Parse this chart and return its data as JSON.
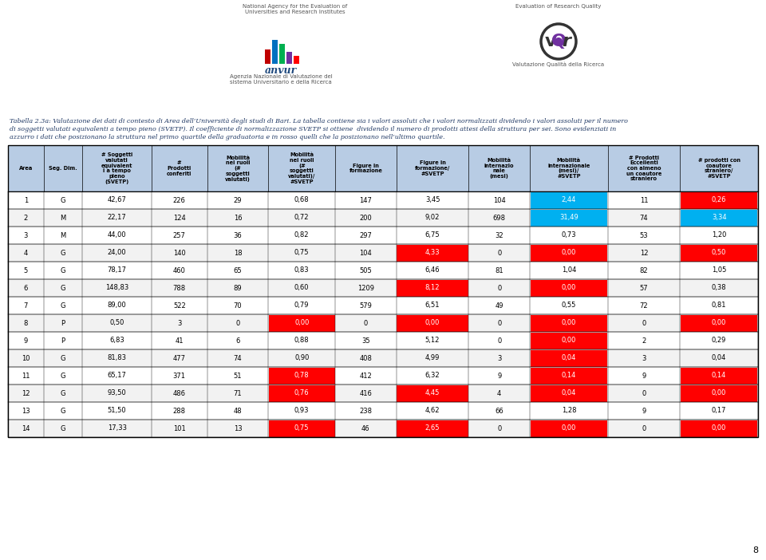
{
  "title_text": "Tabella 2.3a: Valutazione dei dati di contesto di Area dell’Università degli studi di Bari. La tabella contiene sia i valori assoluti che i valori normalizzati dividendo i valori assoluti per il numero di soggetti valutati equivalenti a tempo pieno (SVETP). Il coefficiente di normalizzazione SVETP si ottiene  dividendo il numero di prodotti attesi della struttura per sei. Sono evidenziati in azzurro i dati che posizionano la struttura nel primo quartile della graduatoria e in rosso quelli che la posizionano nell’ultimo quartile.",
  "page_number": "8",
  "header_bg": "#b8cce4",
  "alt_row_bg": "#f2f2f2",
  "white_bg": "#ffffff",
  "blue_highlight": "#00b0f0",
  "red_highlight": "#ff0000",
  "col_headers": [
    "Area",
    "Seg. Dim.",
    "# Soggetti\nvalutati\nequivalent\ni a tempo\npieno\n(SVETP)",
    "#\nProdotti\nconferiti",
    "Mobilità\nnei ruoli\n(#\nsoggetti\nvalutati)",
    "Mobilità\nnei ruoli\n(#\nsoggetti\nvalutati)/\n#SVETP",
    "Figure in\nformazione",
    "Figure in\nformazione/\n#SVETP",
    "Mobilità\ninternazio\nnale\n(mesi)",
    "Mobilità\ninternazionale\n(mesi)/\n#SVETP",
    "# Prodotti\nEccellenti\ncon almeno\nun coautore\nstraniero",
    "# prodotti con\ncoautore\nstraniero/\n#SVETP"
  ],
  "rows": [
    {
      "area": "1",
      "seg": "G",
      "svetp": "42,67",
      "prodotti": "226",
      "mob_ruoli": "29",
      "mob_ruoli_svetp": "0,68",
      "figure": "147",
      "figure_svetp": "3,45",
      "mob_int": "104",
      "mob_int_svetp": "2,44",
      "prod_ecc": "11",
      "prod_coaut": "0,26",
      "colors": [
        "",
        "",
        "",
        "",
        "",
        "",
        "",
        "",
        "",
        "blue",
        "",
        "red"
      ]
    },
    {
      "area": "2",
      "seg": "M",
      "svetp": "22,17",
      "prodotti": "124",
      "mob_ruoli": "16",
      "mob_ruoli_svetp": "0,72",
      "figure": "200",
      "figure_svetp": "9,02",
      "mob_int": "698",
      "mob_int_svetp": "31,49",
      "prod_ecc": "74",
      "prod_coaut": "3,34",
      "colors": [
        "",
        "",
        "",
        "",
        "",
        "",
        "",
        "",
        "",
        "blue",
        "",
        "blue"
      ]
    },
    {
      "area": "3",
      "seg": "M",
      "svetp": "44,00",
      "prodotti": "257",
      "mob_ruoli": "36",
      "mob_ruoli_svetp": "0,82",
      "figure": "297",
      "figure_svetp": "6,75",
      "mob_int": "32",
      "mob_int_svetp": "0,73",
      "prod_ecc": "53",
      "prod_coaut": "1,20",
      "colors": [
        "",
        "",
        "",
        "",
        "",
        "",
        "",
        "",
        "",
        "",
        "",
        ""
      ]
    },
    {
      "area": "4",
      "seg": "G",
      "svetp": "24,00",
      "prodotti": "140",
      "mob_ruoli": "18",
      "mob_ruoli_svetp": "0,75",
      "figure": "104",
      "figure_svetp": "4,33",
      "mob_int": "0",
      "mob_int_svetp": "0,00",
      "prod_ecc": "12",
      "prod_coaut": "0,50",
      "colors": [
        "",
        "",
        "",
        "",
        "",
        "",
        "",
        "red",
        "",
        "red",
        "",
        "red"
      ]
    },
    {
      "area": "5",
      "seg": "G",
      "svetp": "78,17",
      "prodotti": "460",
      "mob_ruoli": "65",
      "mob_ruoli_svetp": "0,83",
      "figure": "505",
      "figure_svetp": "6,46",
      "mob_int": "81",
      "mob_int_svetp": "1,04",
      "prod_ecc": "82",
      "prod_coaut": "1,05",
      "colors": [
        "",
        "",
        "",
        "",
        "",
        "",
        "",
        "",
        "",
        "",
        "",
        ""
      ]
    },
    {
      "area": "6",
      "seg": "G",
      "svetp": "148,83",
      "prodotti": "788",
      "mob_ruoli": "89",
      "mob_ruoli_svetp": "0,60",
      "figure": "1209",
      "figure_svetp": "8,12",
      "mob_int": "0",
      "mob_int_svetp": "0,00",
      "prod_ecc": "57",
      "prod_coaut": "0,38",
      "colors": [
        "",
        "",
        "",
        "",
        "",
        "",
        "",
        "red",
        "",
        "red",
        "",
        ""
      ]
    },
    {
      "area": "7",
      "seg": "G",
      "svetp": "89,00",
      "prodotti": "522",
      "mob_ruoli": "70",
      "mob_ruoli_svetp": "0,79",
      "figure": "579",
      "figure_svetp": "6,51",
      "mob_int": "49",
      "mob_int_svetp": "0,55",
      "prod_ecc": "72",
      "prod_coaut": "0,81",
      "colors": [
        "",
        "",
        "",
        "",
        "",
        "",
        "",
        "",
        "",
        "",
        "",
        ""
      ]
    },
    {
      "area": "8",
      "seg": "P",
      "svetp": "0,50",
      "prodotti": "3",
      "mob_ruoli": "0",
      "mob_ruoli_svetp": "0,00",
      "figure": "0",
      "figure_svetp": "0,00",
      "mob_int": "0",
      "mob_int_svetp": "0,00",
      "prod_ecc": "0",
      "prod_coaut": "0,00",
      "colors": [
        "",
        "",
        "",
        "",
        "",
        "red",
        "",
        "red",
        "",
        "red",
        "",
        "red"
      ]
    },
    {
      "area": "9",
      "seg": "P",
      "svetp": "6,83",
      "prodotti": "41",
      "mob_ruoli": "6",
      "mob_ruoli_svetp": "0,88",
      "figure": "35",
      "figure_svetp": "5,12",
      "mob_int": "0",
      "mob_int_svetp": "0,00",
      "prod_ecc": "2",
      "prod_coaut": "0,29",
      "colors": [
        "",
        "",
        "",
        "",
        "",
        "",
        "",
        "",
        "",
        "red",
        "",
        ""
      ]
    },
    {
      "area": "10",
      "seg": "G",
      "svetp": "81,83",
      "prodotti": "477",
      "mob_ruoli": "74",
      "mob_ruoli_svetp": "0,90",
      "figure": "408",
      "figure_svetp": "4,99",
      "mob_int": "3",
      "mob_int_svetp": "0,04",
      "prod_ecc": "3",
      "prod_coaut": "0,04",
      "colors": [
        "",
        "",
        "",
        "",
        "",
        "",
        "",
        "",
        "",
        "red",
        "",
        ""
      ]
    },
    {
      "area": "11",
      "seg": "G",
      "svetp": "65,17",
      "prodotti": "371",
      "mob_ruoli": "51",
      "mob_ruoli_svetp": "0,78",
      "figure": "412",
      "figure_svetp": "6,32",
      "mob_int": "9",
      "mob_int_svetp": "0,14",
      "prod_ecc": "9",
      "prod_coaut": "0,14",
      "colors": [
        "",
        "",
        "",
        "",
        "",
        "red",
        "",
        "",
        "",
        "red",
        "",
        "red"
      ]
    },
    {
      "area": "12",
      "seg": "G",
      "svetp": "93,50",
      "prodotti": "486",
      "mob_ruoli": "71",
      "mob_ruoli_svetp": "0,76",
      "figure": "416",
      "figure_svetp": "4,45",
      "mob_int": "4",
      "mob_int_svetp": "0,04",
      "prod_ecc": "0",
      "prod_coaut": "0,00",
      "colors": [
        "",
        "",
        "",
        "",
        "",
        "red",
        "",
        "red",
        "",
        "red",
        "",
        "red"
      ]
    },
    {
      "area": "13",
      "seg": "G",
      "svetp": "51,50",
      "prodotti": "288",
      "mob_ruoli": "48",
      "mob_ruoli_svetp": "0,93",
      "figure": "238",
      "figure_svetp": "4,62",
      "mob_int": "66",
      "mob_int_svetp": "1,28",
      "prod_ecc": "9",
      "prod_coaut": "0,17",
      "colors": [
        "",
        "",
        "",
        "",
        "",
        "",
        "",
        "",
        "",
        "",
        "",
        ""
      ]
    },
    {
      "area": "14",
      "seg": "G",
      "svetp": "17,33",
      "prodotti": "101",
      "mob_ruoli": "13",
      "mob_ruoli_svetp": "0,75",
      "figure": "46",
      "figure_svetp": "2,65",
      "mob_int": "0",
      "mob_int_svetp": "0,00",
      "prod_ecc": "0",
      "prod_coaut": "0,00",
      "colors": [
        "",
        "",
        "",
        "",
        "",
        "red",
        "",
        "red",
        "",
        "red",
        "",
        "red"
      ]
    }
  ],
  "top_left_text1": "National Agency for the Evaluation of",
  "top_left_text2": "Universities and Research Institutes",
  "anvur_text": "anvur",
  "anvur_sub": "Agenzia Nazionale di Valutazione del\nsistema Universitario e della Ricerca",
  "top_right_text1": "Evaluation of Research Quality",
  "vqr_sub": "Valutazione Qualità della Ricerca"
}
